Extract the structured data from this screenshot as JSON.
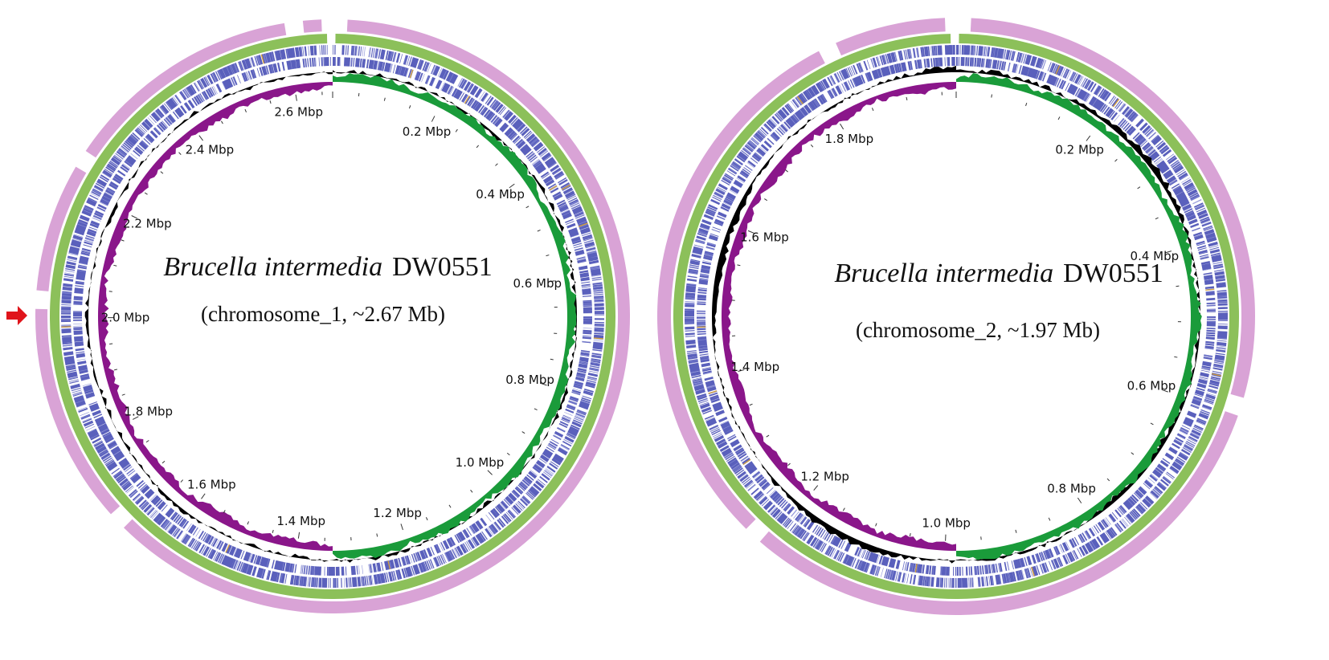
{
  "colors": {
    "outer_ring": "#d9a3d6",
    "feature_ring": "#8cc05a",
    "cds": "#3d44b0",
    "cds_light": "#8a8fd6",
    "rna": "#d7a23a",
    "gc_content": "#000000",
    "gc_skew_pos": "#1a9b3a",
    "gc_skew_neg": "#8a168a",
    "marker_arrow": "#e0141b"
  },
  "maps": [
    {
      "title_italic": "Brucella intermedia",
      "title_strain": "DW0551",
      "subtitle": "(chromosome_1, ~2.67 Mb)",
      "length_mbp": 2.67,
      "tick_labels": [
        "0.2 Mbp",
        "0.4 Mbp",
        "0.6 Mbp",
        "0.8 Mbp",
        "1.0 Mbp",
        "1.2 Mbp",
        "1.4 Mbp",
        "1.6 Mbp",
        "1.8 Mbp",
        "2.0 Mbp",
        "2.2 Mbp",
        "2.4 Mbp",
        "2.6 Mbp"
      ],
      "tick_values_mbp": [
        0.2,
        0.4,
        0.6,
        0.8,
        1.0,
        1.2,
        1.4,
        1.6,
        1.8,
        2.0,
        2.2,
        2.4,
        2.6
      ],
      "has_marker_arrow": true
    },
    {
      "title_italic": "Brucella intermedia",
      "title_strain": "DW0551",
      "subtitle": "(chromosome_2, ~1.97 Mb)",
      "length_mbp": 1.97,
      "tick_labels": [
        "0.2 Mbp",
        "0.4 Mbp",
        "0.6 Mbp",
        "0.8 Mbp",
        "1.0 Mbp",
        "1.2 Mbp",
        "1.4 Mbp",
        "1.6 Mbp",
        "1.8 Mbp"
      ],
      "tick_values_mbp": [
        0.2,
        0.4,
        0.6,
        0.8,
        1.0,
        1.2,
        1.4,
        1.6,
        1.8
      ],
      "has_marker_arrow": false
    }
  ]
}
